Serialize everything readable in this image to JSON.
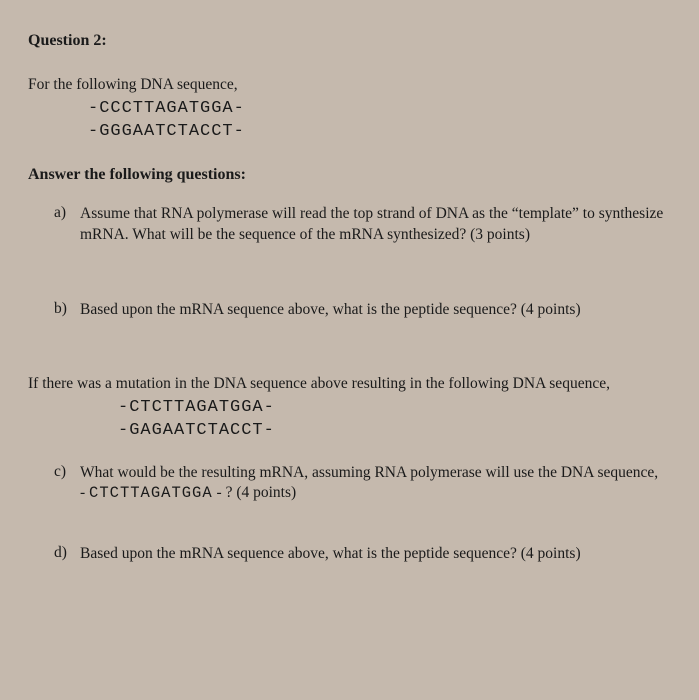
{
  "colors": {
    "background": "#c5b9ad",
    "text": "#1a1a1a"
  },
  "title": "Question 2:",
  "intro": "For the following DNA sequence,",
  "seq_top": "-CCCTTAGATGGA-",
  "seq_bottom": "-GGGAATCTACCT-",
  "answer_head": "Answer the following questions:",
  "items": {
    "a": {
      "label": "a)",
      "text": "Assume that RNA polymerase will read the top strand of DNA as the “template” to synthesize mRNA. What will be the sequence of the mRNA synthesized? (3 points)"
    },
    "b": {
      "label": "b)",
      "text": "Based upon the mRNA sequence above, what is the peptide sequence? (4 points)"
    }
  },
  "mutation_intro": "If there was a mutation in the DNA sequence above resulting in the following DNA sequence,",
  "mut_seq_top": "-CTCTTAGATGGA-",
  "mut_seq_bottom": "-GAGAATCTACCT-",
  "items2": {
    "c": {
      "label": "c)",
      "text_pre": "What would be the resulting mRNA, assuming RNA polymerase will use the DNA sequence, - ",
      "seq_inline": "CTCTTAGATGGA",
      "text_post": " - ? (4 points)"
    },
    "d": {
      "label": "d)",
      "text": "Based upon the mRNA sequence above, what is the peptide sequence? (4 points)"
    }
  }
}
